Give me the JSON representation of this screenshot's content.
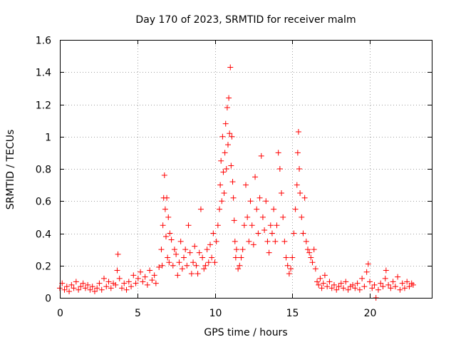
{
  "chart_data": {
    "type": "scatter",
    "title": "Day 170 of 2023, SRMTID for receiver malm",
    "xlabel": "GPS time / hours",
    "ylabel": "SRMTID / TECUs",
    "xlim": [
      0,
      24
    ],
    "ylim": [
      0,
      1.6
    ],
    "x_ticks": [
      0,
      5,
      10,
      15,
      20
    ],
    "x_tick_labels": [
      "0",
      "5",
      "10",
      "15",
      "20"
    ],
    "y_ticks": [
      0,
      0.2,
      0.4,
      0.6,
      0.8,
      1.0,
      1.2,
      1.4,
      1.6
    ],
    "y_tick_labels": [
      "0",
      "0.2",
      "0.4",
      "0.6",
      "0.8",
      "1",
      "1.2",
      "1.4",
      "1.6"
    ],
    "grid": true,
    "legend": "none",
    "marker": "+",
    "series": [
      {
        "name": "SRMTID",
        "color": "#ff0000",
        "points": [
          [
            0.0,
            0.06
          ],
          [
            0.15,
            0.09
          ],
          [
            0.3,
            0.05
          ],
          [
            0.45,
            0.07
          ],
          [
            0.6,
            0.04
          ],
          [
            0.75,
            0.08
          ],
          [
            0.9,
            0.06
          ],
          [
            1.05,
            0.1
          ],
          [
            1.2,
            0.05
          ],
          [
            1.35,
            0.07
          ],
          [
            1.5,
            0.09
          ],
          [
            1.65,
            0.06
          ],
          [
            1.8,
            0.08
          ],
          [
            1.95,
            0.05
          ],
          [
            2.1,
            0.07
          ],
          [
            2.25,
            0.04
          ],
          [
            2.4,
            0.06
          ],
          [
            2.55,
            0.09
          ],
          [
            2.7,
            0.05
          ],
          [
            2.85,
            0.12
          ],
          [
            3.0,
            0.07
          ],
          [
            3.15,
            0.1
          ],
          [
            3.3,
            0.06
          ],
          [
            3.45,
            0.09
          ],
          [
            3.6,
            0.08
          ],
          [
            3.7,
            0.17
          ],
          [
            3.75,
            0.27
          ],
          [
            3.85,
            0.12
          ],
          [
            4.0,
            0.06
          ],
          [
            4.15,
            0.09
          ],
          [
            4.3,
            0.05
          ],
          [
            4.45,
            0.1
          ],
          [
            4.6,
            0.07
          ],
          [
            4.75,
            0.14
          ],
          [
            4.9,
            0.09
          ],
          [
            5.05,
            0.12
          ],
          [
            5.2,
            0.16
          ],
          [
            5.35,
            0.1
          ],
          [
            5.5,
            0.13
          ],
          [
            5.65,
            0.08
          ],
          [
            5.8,
            0.17
          ],
          [
            5.95,
            0.11
          ],
          [
            6.1,
            0.14
          ],
          [
            6.2,
            0.09
          ],
          [
            6.4,
            0.19
          ],
          [
            6.55,
            0.3
          ],
          [
            6.6,
            0.2
          ],
          [
            6.65,
            0.45
          ],
          [
            6.7,
            0.62
          ],
          [
            6.75,
            0.76
          ],
          [
            6.8,
            0.55
          ],
          [
            6.85,
            0.38
          ],
          [
            6.9,
            0.62
          ],
          [
            6.95,
            0.25
          ],
          [
            7.0,
            0.5
          ],
          [
            7.05,
            0.22
          ],
          [
            7.1,
            0.4
          ],
          [
            7.2,
            0.36
          ],
          [
            7.3,
            0.2
          ],
          [
            7.4,
            0.3
          ],
          [
            7.5,
            0.27
          ],
          [
            7.6,
            0.14
          ],
          [
            7.7,
            0.22
          ],
          [
            7.8,
            0.35
          ],
          [
            7.9,
            0.18
          ],
          [
            8.0,
            0.25
          ],
          [
            8.1,
            0.3
          ],
          [
            8.2,
            0.2
          ],
          [
            8.3,
            0.45
          ],
          [
            8.4,
            0.28
          ],
          [
            8.5,
            0.15
          ],
          [
            8.6,
            0.22
          ],
          [
            8.7,
            0.32
          ],
          [
            8.8,
            0.2
          ],
          [
            8.9,
            0.15
          ],
          [
            9.0,
            0.28
          ],
          [
            9.1,
            0.55
          ],
          [
            9.2,
            0.25
          ],
          [
            9.3,
            0.18
          ],
          [
            9.4,
            0.2
          ],
          [
            9.5,
            0.3
          ],
          [
            9.6,
            0.22
          ],
          [
            9.7,
            0.33
          ],
          [
            9.8,
            0.25
          ],
          [
            9.9,
            0.4
          ],
          [
            10.0,
            0.22
          ],
          [
            10.1,
            0.35
          ],
          [
            10.2,
            0.45
          ],
          [
            10.3,
            0.55
          ],
          [
            10.35,
            0.7
          ],
          [
            10.4,
            0.85
          ],
          [
            10.45,
            0.6
          ],
          [
            10.5,
            1.0
          ],
          [
            10.55,
            0.78
          ],
          [
            10.6,
            0.65
          ],
          [
            10.65,
            0.9
          ],
          [
            10.7,
            1.08
          ],
          [
            10.75,
            0.8
          ],
          [
            10.8,
            1.18
          ],
          [
            10.85,
            0.95
          ],
          [
            10.9,
            1.24
          ],
          [
            10.95,
            1.02
          ],
          [
            11.0,
            1.43
          ],
          [
            11.05,
            0.82
          ],
          [
            11.1,
            1.0
          ],
          [
            11.15,
            0.72
          ],
          [
            11.2,
            0.62
          ],
          [
            11.25,
            0.48
          ],
          [
            11.3,
            0.35
          ],
          [
            11.35,
            0.25
          ],
          [
            11.4,
            0.3
          ],
          [
            11.5,
            0.18
          ],
          [
            11.6,
            0.2
          ],
          [
            11.7,
            0.25
          ],
          [
            11.8,
            0.3
          ],
          [
            11.9,
            0.45
          ],
          [
            12.0,
            0.7
          ],
          [
            12.1,
            0.5
          ],
          [
            12.2,
            0.35
          ],
          [
            12.3,
            0.6
          ],
          [
            12.4,
            0.45
          ],
          [
            12.5,
            0.33
          ],
          [
            12.6,
            0.75
          ],
          [
            12.7,
            0.55
          ],
          [
            12.8,
            0.4
          ],
          [
            12.9,
            0.62
          ],
          [
            13.0,
            0.88
          ],
          [
            13.1,
            0.5
          ],
          [
            13.2,
            0.42
          ],
          [
            13.3,
            0.6
          ],
          [
            13.4,
            0.35
          ],
          [
            13.5,
            0.28
          ],
          [
            13.6,
            0.45
          ],
          [
            13.7,
            0.4
          ],
          [
            13.8,
            0.55
          ],
          [
            13.9,
            0.35
          ],
          [
            14.0,
            0.45
          ],
          [
            14.1,
            0.9
          ],
          [
            14.2,
            0.8
          ],
          [
            14.3,
            0.65
          ],
          [
            14.4,
            0.5
          ],
          [
            14.5,
            0.35
          ],
          [
            14.6,
            0.25
          ],
          [
            14.7,
            0.2
          ],
          [
            14.8,
            0.15
          ],
          [
            14.9,
            0.18
          ],
          [
            15.0,
            0.25
          ],
          [
            15.1,
            0.4
          ],
          [
            15.2,
            0.55
          ],
          [
            15.3,
            0.7
          ],
          [
            15.35,
            0.9
          ],
          [
            15.4,
            1.03
          ],
          [
            15.45,
            0.8
          ],
          [
            15.5,
            0.65
          ],
          [
            15.6,
            0.5
          ],
          [
            15.7,
            0.4
          ],
          [
            15.8,
            0.62
          ],
          [
            15.9,
            0.35
          ],
          [
            16.0,
            0.3
          ],
          [
            16.1,
            0.28
          ],
          [
            16.2,
            0.25
          ],
          [
            16.3,
            0.22
          ],
          [
            16.4,
            0.3
          ],
          [
            16.5,
            0.18
          ],
          [
            16.6,
            0.1
          ],
          [
            16.7,
            0.08
          ],
          [
            16.8,
            0.12
          ],
          [
            16.9,
            0.06
          ],
          [
            17.0,
            0.09
          ],
          [
            17.1,
            0.14
          ],
          [
            17.25,
            0.07
          ],
          [
            17.4,
            0.1
          ],
          [
            17.55,
            0.06
          ],
          [
            17.7,
            0.08
          ],
          [
            17.85,
            0.05
          ],
          [
            18.0,
            0.07
          ],
          [
            18.15,
            0.09
          ],
          [
            18.3,
            0.06
          ],
          [
            18.45,
            0.1
          ],
          [
            18.6,
            0.05
          ],
          [
            18.75,
            0.07
          ],
          [
            18.9,
            0.08
          ],
          [
            19.05,
            0.06
          ],
          [
            19.2,
            0.09
          ],
          [
            19.35,
            0.05
          ],
          [
            19.5,
            0.12
          ],
          [
            19.65,
            0.07
          ],
          [
            19.8,
            0.16
          ],
          [
            19.9,
            0.21
          ],
          [
            20.0,
            0.1
          ],
          [
            20.15,
            0.06
          ],
          [
            20.3,
            0.08
          ],
          [
            20.4,
            0.0
          ],
          [
            20.55,
            0.05
          ],
          [
            20.7,
            0.09
          ],
          [
            20.85,
            0.07
          ],
          [
            21.0,
            0.12
          ],
          [
            21.05,
            0.17
          ],
          [
            21.2,
            0.08
          ],
          [
            21.35,
            0.06
          ],
          [
            21.5,
            0.1
          ],
          [
            21.65,
            0.07
          ],
          [
            21.8,
            0.13
          ],
          [
            21.95,
            0.05
          ],
          [
            22.1,
            0.09
          ],
          [
            22.25,
            0.06
          ],
          [
            22.4,
            0.1
          ],
          [
            22.55,
            0.07
          ],
          [
            22.7,
            0.09
          ],
          [
            22.8,
            0.08
          ]
        ]
      }
    ]
  }
}
